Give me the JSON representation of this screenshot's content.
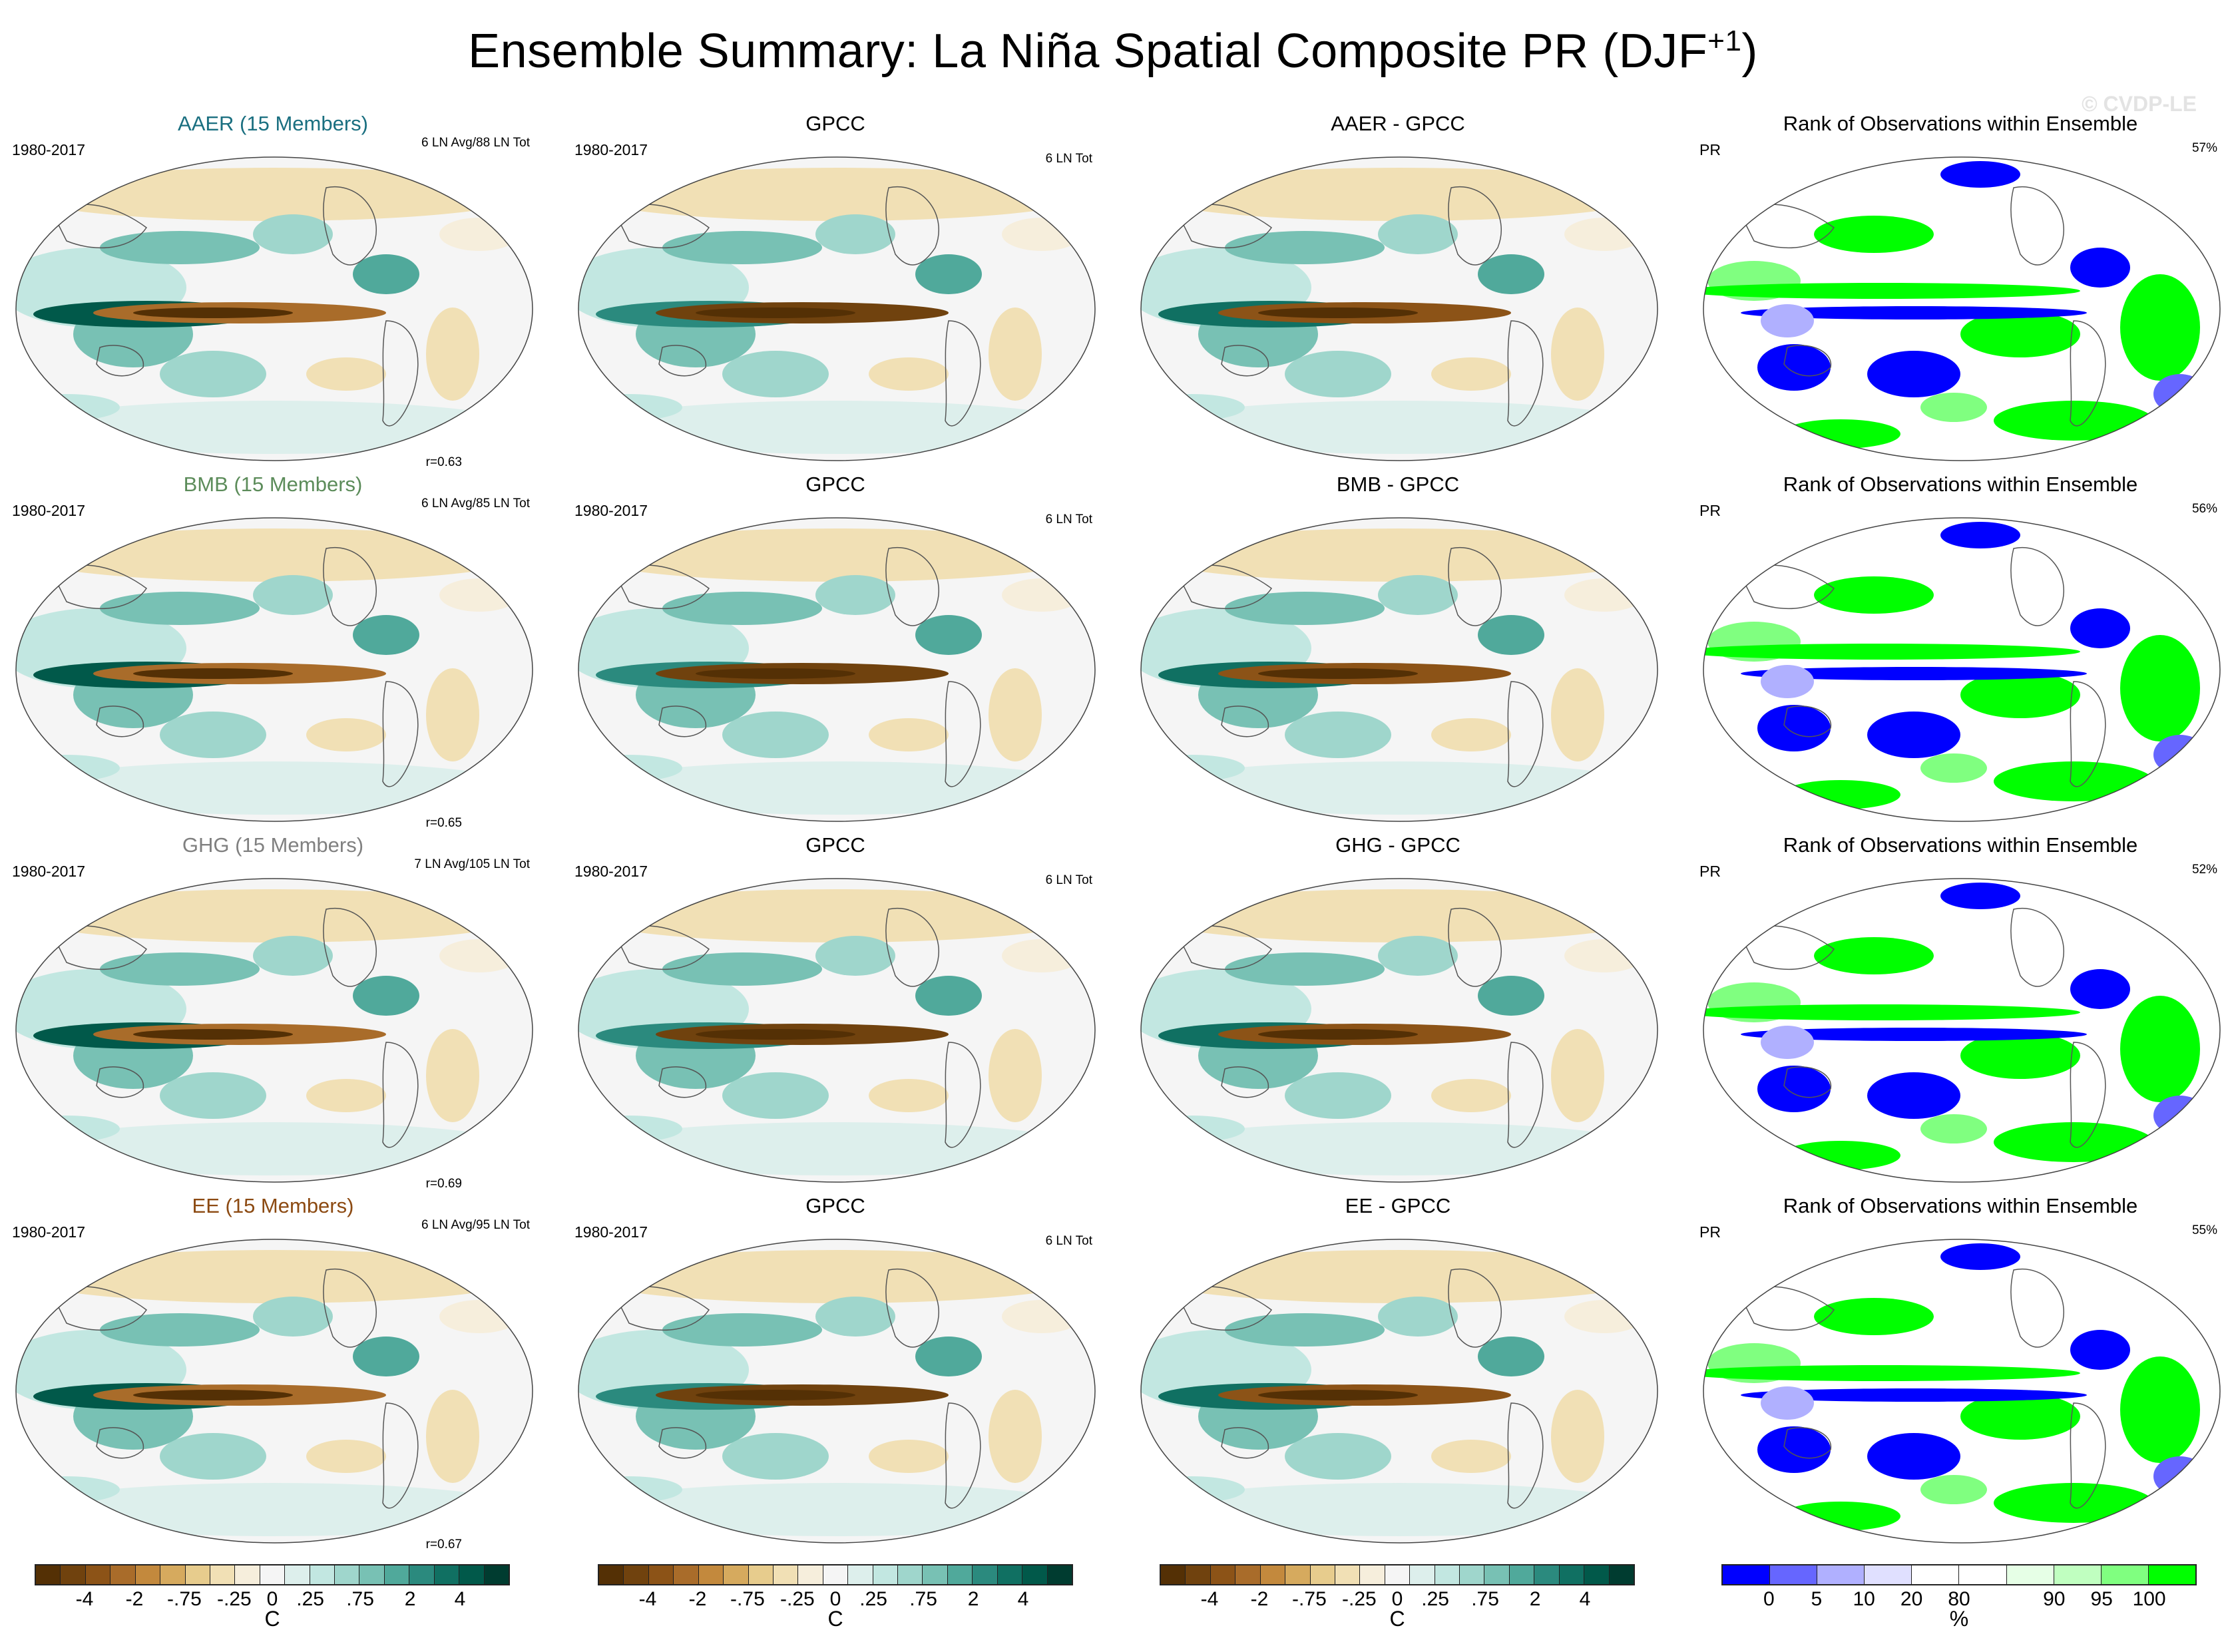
{
  "title": {
    "main": "Ensemble Summary: La Niña Spatial Composite PR (DJF",
    "sup": "+1",
    "close": ")"
  },
  "watermark": "© CVDP-LE",
  "colors": {
    "AAER": "#1a6f80",
    "BMB": "#5c8c5a",
    "GHG": "#808080",
    "EE": "#8c4a12",
    "diverging": [
      "#543005",
      "#70420e",
      "#8c5317",
      "#a96c2a",
      "#c3893d",
      "#d6aa5e",
      "#e7cc8d",
      "#f1e0b5",
      "#f6eedc",
      "#f5f5f5",
      "#ddefec",
      "#c2e7e1",
      "#9fd6cc",
      "#78c1b4",
      "#50a99b",
      "#2b8a7e",
      "#107062",
      "#01594a",
      "#003c30"
    ],
    "rank": [
      "#0000ff",
      "#6666ff",
      "#b0b0ff",
      "#e0e0ff",
      "#ffffff",
      "#ffffff",
      "#e6ffe6",
      "#c0ffc0",
      "#80ff80",
      "#00ff00"
    ]
  },
  "rows": [
    {
      "model": {
        "title": "AAER (15 Members)",
        "period": "1980-2017",
        "count": "6 LN Avg/88 LN Tot",
        "r": "r=0.63"
      },
      "obs": {
        "title": "GPCC",
        "period": "1980-2017",
        "count": "6 LN Tot"
      },
      "diff": {
        "title": "AAER - GPCC"
      },
      "rank": {
        "title": "Rank of Observations within Ensemble",
        "var": "PR",
        "pct": "57%"
      }
    },
    {
      "model": {
        "title": "BMB (15 Members)",
        "period": "1980-2017",
        "count": "6 LN Avg/85 LN Tot",
        "r": "r=0.65"
      },
      "obs": {
        "title": "GPCC",
        "period": "1980-2017",
        "count": "6 LN Tot"
      },
      "diff": {
        "title": "BMB - GPCC"
      },
      "rank": {
        "title": "Rank of Observations within Ensemble",
        "var": "PR",
        "pct": "56%"
      }
    },
    {
      "model": {
        "title": "GHG (15 Members)",
        "period": "1980-2017",
        "count": "7 LN Avg/105 LN Tot",
        "r": "r=0.69"
      },
      "obs": {
        "title": "GPCC",
        "period": "1980-2017",
        "count": "6 LN Tot"
      },
      "diff": {
        "title": "GHG - GPCC"
      },
      "rank": {
        "title": "Rank of Observations within Ensemble",
        "var": "PR",
        "pct": "52%"
      }
    },
    {
      "model": {
        "title": "EE (15 Members)",
        "period": "1980-2017",
        "count": "6 LN Avg/95 LN Tot",
        "r": "r=0.67"
      },
      "obs": {
        "title": "GPCC",
        "period": "1980-2017",
        "count": "6 LN Tot"
      },
      "diff": {
        "title": "EE - GPCC"
      },
      "rank": {
        "title": "Rank of Observations within Ensemble",
        "var": "PR",
        "pct": "55%"
      }
    }
  ],
  "colorbars": {
    "diverging": {
      "labels": [
        "-4",
        "-2",
        "-.75",
        "-.25",
        "0",
        ".25",
        ".75",
        "2",
        "4"
      ],
      "unit": "C"
    },
    "rank": {
      "labels": [
        "0",
        "5",
        "10",
        "20",
        "80",
        "90",
        "95",
        "100"
      ],
      "unit": "%"
    }
  }
}
